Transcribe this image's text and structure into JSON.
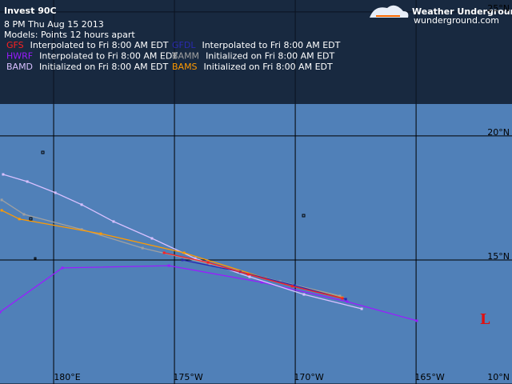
{
  "header": {
    "title": "Invest 90C",
    "datetime": "8 PM  Thu Aug 15 2013",
    "models_note": "Models:  Points 12 hours apart",
    "logo": "Weather Underground®",
    "logo_url": "wunderground.com"
  },
  "map": {
    "lonlim": [
      177.78,
      198.97
    ],
    "latlim": [
      10,
      25.48
    ],
    "lat_lines": [
      {
        "value": 25,
        "label": "25°N"
      },
      {
        "value": 20,
        "label": "20°N"
      },
      {
        "value": 15,
        "label": "15°N"
      },
      {
        "value": 10,
        "label": "10°N"
      }
    ],
    "lon_lines": [
      {
        "value": 180,
        "label": "180°E"
      },
      {
        "value": 185,
        "label": "175°W"
      },
      {
        "value": 190,
        "label": "170°W"
      },
      {
        "value": 195,
        "label": "165°W"
      }
    ],
    "low": {
      "label": "L",
      "lon": 197.85,
      "lat": 12.58
    }
  },
  "models": [
    {
      "name": "GFS",
      "color": "#ff2020",
      "description": "Interpolated to Fri 8:00 AM EDT",
      "track": {
        "lon": [
          184.57,
          186.39,
          188.05,
          189.87,
          191.95
        ],
        "lat": [
          15.29,
          14.9,
          14.42,
          13.94,
          13.45
        ]
      }
    },
    {
      "name": "GFDL",
      "color": "#2a2ab0",
      "description": "Interpolated to Fri 8:00 AM EDT",
      "track": {
        "lon": [
          185.33,
          187.72,
          189.97,
          192.09
        ],
        "lat": [
          15.0,
          14.52,
          13.97,
          13.42
        ]
      }
    },
    {
      "name": "HWRF",
      "color": "#9a1cff",
      "description": "Interpolated to Fri 8:00 AM EDT",
      "track": {
        "lon": [
          177.78,
          180.36,
          184.77,
          188.61,
          192.15,
          195.03
        ],
        "lat": [
          12.9,
          14.68,
          14.77,
          14.1,
          13.32,
          12.55
        ]
      }
    },
    {
      "name": "BAMM",
      "color": "#a0a0a0",
      "description": "Initialized on Fri 8:00 AM EDT",
      "track": {
        "lon": [
          177.85,
          178.77,
          181.16,
          183.68,
          186.46,
          189.37,
          191.85
        ],
        "lat": [
          17.42,
          16.84,
          16.23,
          15.48,
          14.84,
          14.13,
          13.55
        ]
      }
    },
    {
      "name": "BAMD",
      "color": "#d8c0ff",
      "description": "Initialized on Fri 8:00 AM EDT",
      "track": {
        "lon": [
          177.91,
          178.91,
          180.07,
          181.16,
          182.48,
          184.07,
          185.86,
          188.11,
          190.36,
          192.75
        ],
        "lat": [
          18.45,
          18.16,
          17.71,
          17.23,
          16.55,
          15.87,
          15.06,
          14.32,
          13.61,
          13.03
        ]
      }
    },
    {
      "name": "BAMS",
      "color": "#ff9a00",
      "description": "Initialized on Fri 8:00 AM EDT",
      "track": {
        "lon": [
          177.85,
          178.58,
          181.95,
          185.4,
          188.77,
          191.95
        ],
        "lat": [
          17.0,
          16.65,
          16.06,
          15.29,
          14.26,
          13.48
        ]
      }
    }
  ]
}
